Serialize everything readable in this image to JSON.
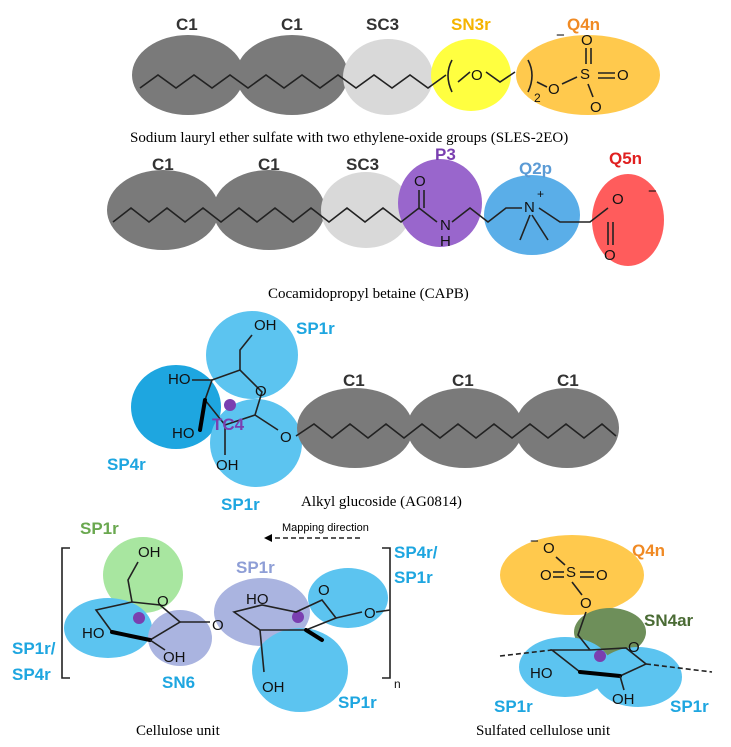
{
  "sles": {
    "beads": [
      {
        "label": "C1",
        "color": "#7a7a7a",
        "text_color": "#333333"
      },
      {
        "label": "C1",
        "color": "#7a7a7a",
        "text_color": "#333333"
      },
      {
        "label": "SC3",
        "color": "#d9d9d9",
        "text_color": "#333333"
      },
      {
        "label": "SN3r",
        "color": "#ffff40",
        "text_color": "#f5b400"
      },
      {
        "label": "Q4n",
        "color": "#ffc94d",
        "text_color": "#f08a24"
      }
    ],
    "atoms": {
      "o_ether": "O",
      "subscript": "2",
      "o_link": "O",
      "s": "S",
      "o1": "O",
      "o2": "O",
      "o3": "O",
      "minus": "−"
    },
    "caption": "Sodium lauryl ether sulfate with two ethylene-oxide groups (SLES-2EO)"
  },
  "capb": {
    "beads": [
      {
        "label": "C1",
        "color": "#7a7a7a",
        "text_color": "#333333"
      },
      {
        "label": "C1",
        "color": "#7a7a7a",
        "text_color": "#333333"
      },
      {
        "label": "SC3",
        "color": "#d9d9d9",
        "text_color": "#333333"
      },
      {
        "label": "P3",
        "color": "#9966cc",
        "text_color": "#7a3fb0"
      },
      {
        "label": "Q2p",
        "color": "#5aaee8",
        "text_color": "#5b9bd5"
      },
      {
        "label": "Q5n",
        "color": "#ff5c5c",
        "text_color": "#e02020"
      }
    ],
    "atoms": {
      "o_amide": "O",
      "nh": "N",
      "h": "H",
      "n_plus": "N",
      "plus": "+",
      "o_acid1": "O",
      "o_acid2": "O",
      "minus": "−"
    },
    "caption": "Cocamidopropyl betaine (CAPB)"
  },
  "ag": {
    "beads": [
      {
        "label": "SP1r",
        "color": "#5cc4f0",
        "text_color": "#1ea6e0"
      },
      {
        "label": "SP4r",
        "color": "#1ea6e0",
        "text_color": "#1ea6e0"
      },
      {
        "label": "TC4",
        "color": "#7a3fb0",
        "text_color": "#7a3fb0"
      },
      {
        "label": "SP1r",
        "color": "#5cc4f0",
        "text_color": "#1ea6e0"
      },
      {
        "label": "C1",
        "color": "#7a7a7a",
        "text_color": "#333333"
      },
      {
        "label": "C1",
        "color": "#7a7a7a",
        "text_color": "#333333"
      },
      {
        "label": "C1",
        "color": "#7a7a7a",
        "text_color": "#333333"
      }
    ],
    "atoms": {
      "oh_top": "OH",
      "ho_left": "HO",
      "ho_lower": "HO",
      "oh_bottom": "OH",
      "o_ring": "O",
      "o_link": "O"
    },
    "caption": "Alkyl glucoside (AG0814)"
  },
  "cellulose": {
    "direction_label": "Mapping direction",
    "beads": [
      {
        "label": "SP1r",
        "color": "#a8e6a0",
        "text_color": "#6aa84f"
      },
      {
        "label": "SP1r",
        "color": "#aab4e0",
        "text_color": "#8e9ed6"
      },
      {
        "label": "SP4r/",
        "color": "#5cc4f0",
        "text_color": "#1ea6e0"
      },
      {
        "label": "SP1r",
        "color": "#5cc4f0",
        "text_color": "#1ea6e0"
      },
      {
        "label": "SP1r/",
        "color": "#5cc4f0",
        "text_color": "#1ea6e0"
      },
      {
        "label": "SP4r",
        "color": "#5cc4f0",
        "text_color": "#1ea6e0"
      },
      {
        "label": "SN6",
        "color": "#aab4e0",
        "text_color": "#1ea6e0"
      },
      {
        "label": "SP1r",
        "color": "#5cc4f0",
        "text_color": "#1ea6e0"
      }
    ],
    "atoms": {
      "oh_top": "OH",
      "o_ring1": "O",
      "ho1": "HO",
      "oh1": "OH",
      "o_bridge": "O",
      "ho2": "HO",
      "o_ring2": "O",
      "o_link": "O",
      "oh2": "OH",
      "n": "n"
    },
    "caption": "Cellulose unit"
  },
  "sulfated": {
    "beads": [
      {
        "label": "Q4n",
        "color": "#ffc94d",
        "text_color": "#f08a24"
      },
      {
        "label": "SN4ar",
        "color": "#6e8f5a",
        "text_color": "#4a6b34"
      },
      {
        "label": "SP1r",
        "color": "#5cc4f0",
        "text_color": "#1ea6e0"
      },
      {
        "label": "SP1r",
        "color": "#5cc4f0",
        "text_color": "#1ea6e0"
      }
    ],
    "atoms": {
      "minus": "−",
      "o1": "O",
      "s": "S",
      "o2": "O",
      "o3": "O",
      "o4": "O",
      "o_ring": "O",
      "ho": "HO",
      "oh": "OH"
    },
    "caption": "Sulfated cellulose unit"
  }
}
